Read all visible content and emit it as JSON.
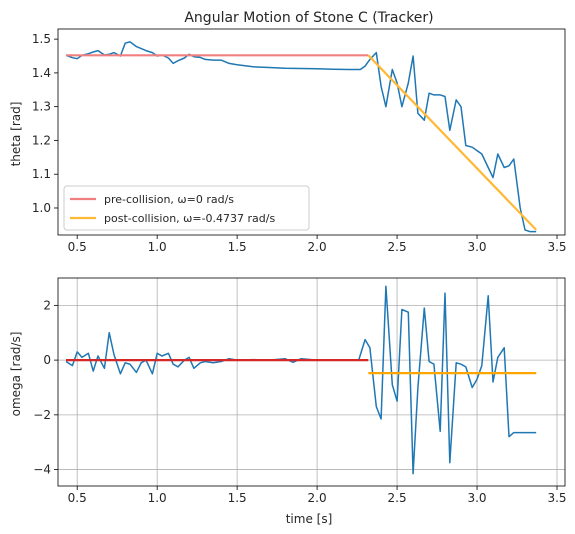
{
  "chart_data": [
    {
      "type": "line",
      "title": "Angular Motion of Stone C (Tracker)",
      "xlabel": "",
      "ylabel": "theta [rad]",
      "xlim": [
        0.38,
        3.55
      ],
      "ylim": [
        0.92,
        1.53
      ],
      "xticks": [
        0.5,
        1.0,
        1.5,
        2.0,
        2.5,
        3.0,
        3.5
      ],
      "xtick_labels": [
        "0.5",
        "1.0",
        "1.5",
        "2.0",
        "2.5",
        "3.0",
        "3.5"
      ],
      "yticks": [
        1.0,
        1.1,
        1.2,
        1.3,
        1.4,
        1.5
      ],
      "ytick_labels": [
        "1.0",
        "1.1",
        "1.2",
        "1.3",
        "1.4",
        "1.5"
      ],
      "grid": false,
      "legend": {
        "placement": "lower-left",
        "entries": [
          "pre-collision, ω=0 rad/s",
          "post-collision, ω=-0.4737 rad/s"
        ]
      },
      "series": [
        {
          "color": "#1f77b4",
          "x": [
            0.43,
            0.47,
            0.5,
            0.53,
            0.57,
            0.6,
            0.63,
            0.67,
            0.7,
            0.73,
            0.77,
            0.8,
            0.83,
            0.87,
            0.9,
            0.93,
            0.97,
            1.0,
            1.03,
            1.07,
            1.1,
            1.13,
            1.17,
            1.2,
            1.23,
            1.27,
            1.3,
            1.35,
            1.4,
            1.45,
            1.5,
            1.6,
            1.7,
            1.8,
            1.9,
            2.0,
            2.1,
            2.2,
            2.27,
            2.3,
            2.33,
            2.37,
            2.4,
            2.43,
            2.47,
            2.5,
            2.53,
            2.57,
            2.6,
            2.63,
            2.67,
            2.7,
            2.73,
            2.77,
            2.8,
            2.83,
            2.87,
            2.9,
            2.93,
            2.97,
            3.0,
            3.03,
            3.07,
            3.1,
            3.13,
            3.17,
            3.2,
            3.23,
            3.27,
            3.3,
            3.33,
            3.37
          ],
          "y": [
            1.452,
            1.445,
            1.442,
            1.452,
            1.457,
            1.462,
            1.466,
            1.453,
            1.455,
            1.46,
            1.45,
            1.488,
            1.492,
            1.478,
            1.472,
            1.466,
            1.46,
            1.45,
            1.453,
            1.444,
            1.428,
            1.436,
            1.444,
            1.455,
            1.448,
            1.446,
            1.44,
            1.438,
            1.438,
            1.428,
            1.424,
            1.418,
            1.416,
            1.414,
            1.413,
            1.412,
            1.411,
            1.41,
            1.41,
            1.42,
            1.44,
            1.46,
            1.36,
            1.3,
            1.41,
            1.37,
            1.3,
            1.37,
            1.45,
            1.28,
            1.26,
            1.34,
            1.335,
            1.335,
            1.33,
            1.23,
            1.32,
            1.3,
            1.185,
            1.18,
            1.17,
            1.16,
            1.12,
            1.09,
            1.16,
            1.12,
            1.125,
            1.145,
            1.0,
            0.935,
            0.93,
            0.93
          ]
        },
        {
          "name": "pre-collision, ω=0 rad/s",
          "color": "#f08080",
          "x": [
            0.43,
            2.32
          ],
          "y": [
            1.452,
            1.452
          ]
        },
        {
          "name": "post-collision, ω=-0.4737 rad/s",
          "color": "#ffb833",
          "x": [
            2.32,
            3.37
          ],
          "y": [
            1.452,
            0.935
          ]
        }
      ]
    },
    {
      "type": "line",
      "title": "",
      "xlabel": "time [s]",
      "ylabel": "omega [rad/s]",
      "xlim": [
        0.38,
        3.55
      ],
      "ylim": [
        -4.6,
        3.0
      ],
      "xticks": [
        0.5,
        1.0,
        1.5,
        2.0,
        2.5,
        3.0,
        3.5
      ],
      "xtick_labels": [
        "0.5",
        "1.0",
        "1.5",
        "2.0",
        "2.5",
        "3.0",
        "3.5"
      ],
      "yticks": [
        -4,
        -2,
        0,
        2
      ],
      "ytick_labels": [
        "−4",
        "−2",
        "0",
        "2"
      ],
      "grid": true,
      "series": [
        {
          "color": "#1f77b4",
          "x": [
            0.43,
            0.47,
            0.5,
            0.53,
            0.57,
            0.6,
            0.63,
            0.67,
            0.7,
            0.73,
            0.77,
            0.8,
            0.83,
            0.87,
            0.9,
            0.93,
            0.97,
            1.0,
            1.03,
            1.07,
            1.1,
            1.13,
            1.17,
            1.2,
            1.23,
            1.27,
            1.3,
            1.35,
            1.4,
            1.45,
            1.5,
            1.6,
            1.7,
            1.8,
            1.85,
            1.9,
            2.0,
            2.1,
            2.2,
            2.26,
            2.3,
            2.33,
            2.37,
            2.4,
            2.43,
            2.47,
            2.5,
            2.53,
            2.57,
            2.6,
            2.63,
            2.67,
            2.7,
            2.73,
            2.77,
            2.8,
            2.83,
            2.87,
            2.9,
            2.93,
            2.97,
            3.0,
            3.03,
            3.07,
            3.1,
            3.13,
            3.17,
            3.2,
            3.23,
            3.27,
            3.3,
            3.33,
            3.37
          ],
          "y": [
            -0.05,
            -0.2,
            0.3,
            0.1,
            0.25,
            -0.4,
            0.15,
            -0.3,
            1.0,
            0.2,
            -0.5,
            -0.1,
            -0.15,
            -0.45,
            -0.1,
            0.0,
            -0.5,
            0.25,
            0.15,
            0.25,
            -0.15,
            -0.25,
            0.0,
            0.1,
            -0.3,
            -0.1,
            -0.05,
            -0.1,
            -0.05,
            0.05,
            0.0,
            0.02,
            0.0,
            0.05,
            -0.08,
            0.05,
            0.0,
            0.0,
            0.0,
            0.0,
            0.75,
            0.45,
            -1.7,
            -2.15,
            2.7,
            -0.9,
            -1.5,
            1.85,
            1.75,
            -4.15,
            -1.0,
            1.9,
            -0.05,
            -0.15,
            -2.6,
            2.45,
            -3.75,
            -0.1,
            -0.15,
            -0.25,
            -1.0,
            -0.7,
            -0.2,
            2.35,
            -0.8,
            0.1,
            0.45,
            -2.8,
            -2.65,
            -2.65,
            -2.65,
            -2.65,
            -2.65
          ]
        },
        {
          "color": "#d62728",
          "x": [
            0.43,
            2.32
          ],
          "y": [
            0.0,
            0.0
          ]
        },
        {
          "color": "#ffa500",
          "x": [
            2.32,
            3.37
          ],
          "y": [
            -0.4737,
            -0.4737
          ]
        }
      ]
    }
  ]
}
